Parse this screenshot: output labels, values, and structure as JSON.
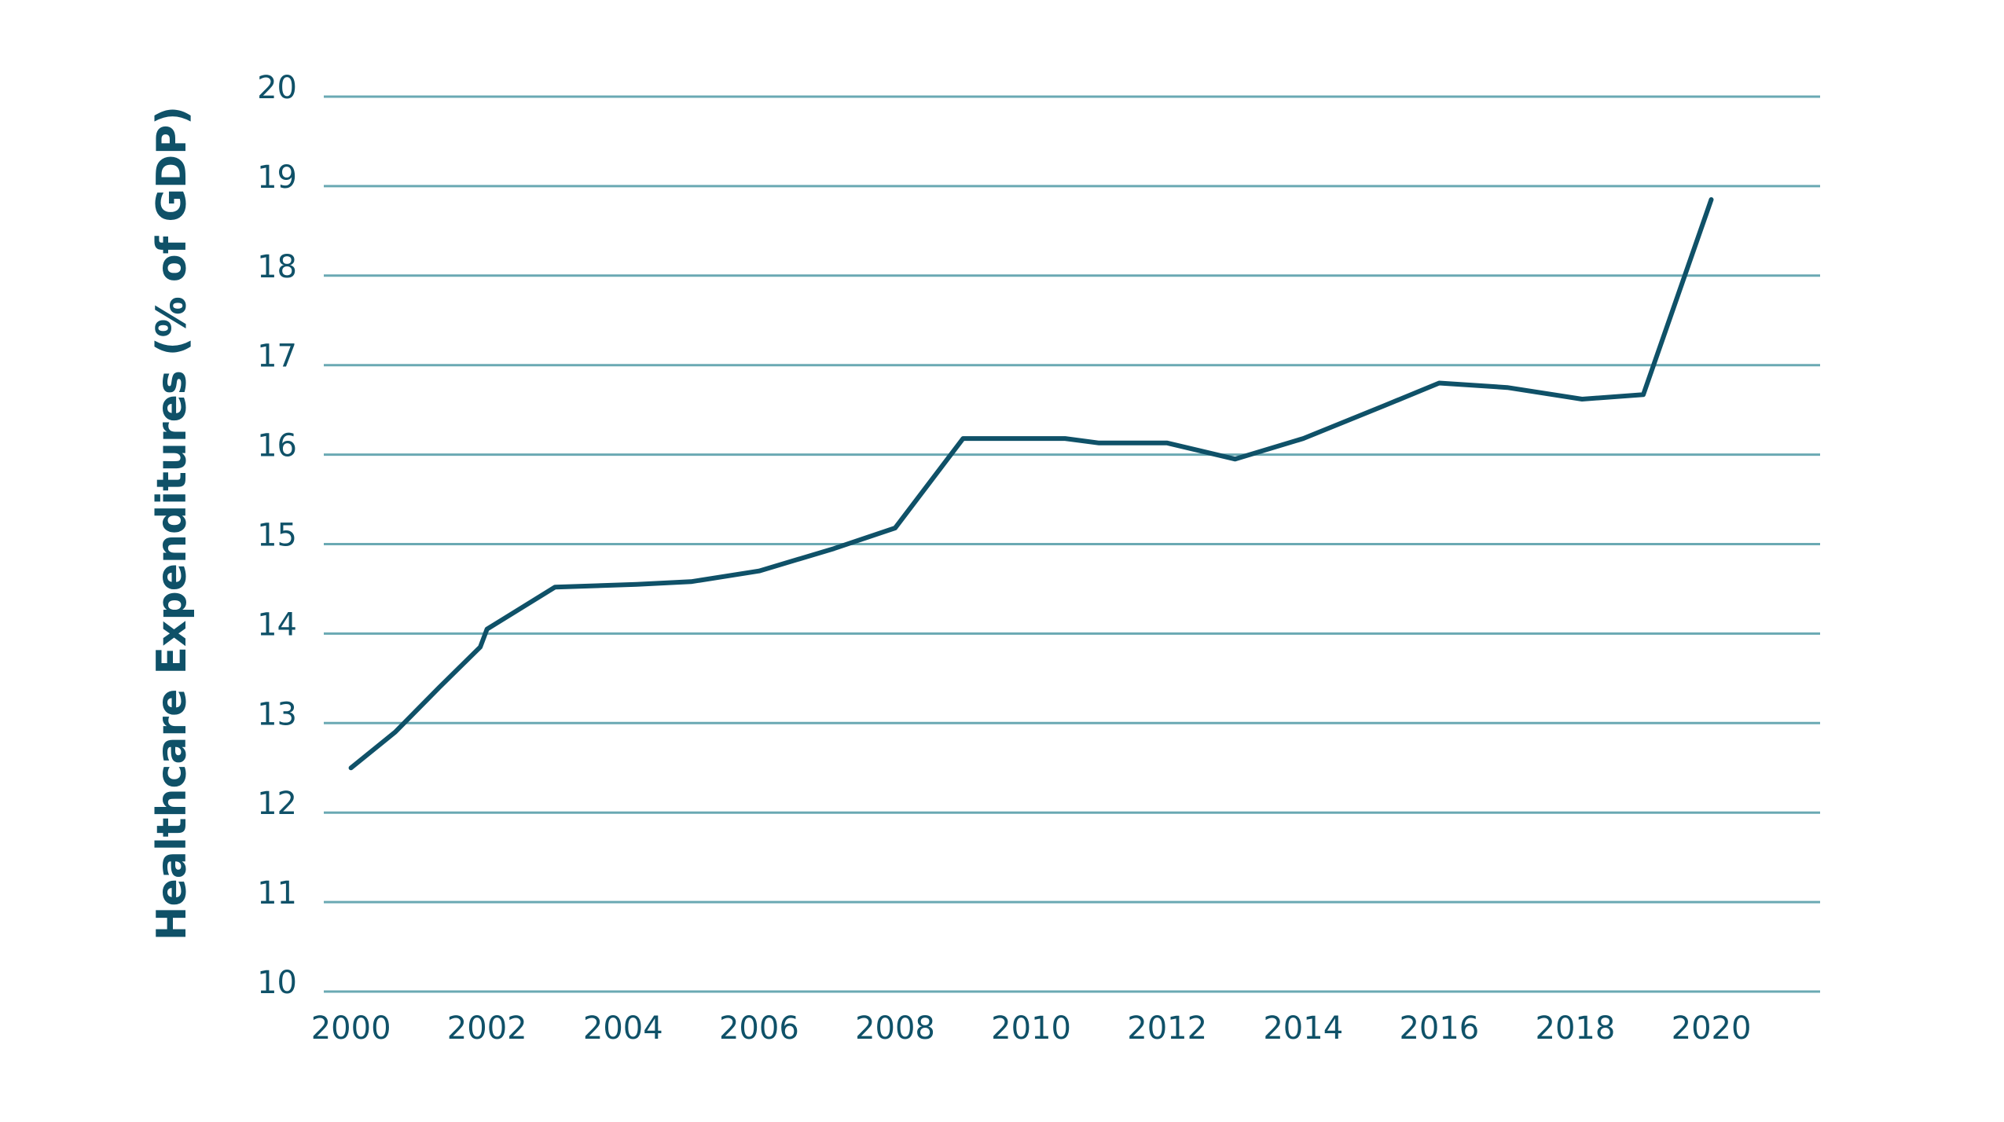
{
  "chart_data": {
    "type": "line",
    "title": "",
    "xlabel": "",
    "ylabel": "Healthcare Expenditures (% of GDP)",
    "xlim": [
      1999.6,
      2021.6
    ],
    "ylim": [
      10,
      20
    ],
    "x_ticks": [
      2000,
      2002,
      2004,
      2006,
      2008,
      2010,
      2012,
      2014,
      2016,
      2018,
      2020
    ],
    "y_ticks": [
      10,
      11,
      12,
      13,
      14,
      15,
      16,
      17,
      18,
      19,
      20
    ],
    "grid": "horizontal",
    "legend": "none",
    "series": [
      {
        "color": "#0f5168",
        "x": [
          2000,
          2000.65,
          2001.3,
          2001.9,
          2002.0,
          2003.0,
          2004.2,
          2005.0,
          2006.0,
          2007.1,
          2008.0,
          2009.0,
          2010.0,
          2010.5,
          2011.0,
          2012.0,
          2013.0,
          2014.0,
          2015.2,
          2016.0,
          2017.0,
          2018.1,
          2019.0,
          2020.0
        ],
        "y": [
          12.5,
          12.9,
          13.4,
          13.85,
          14.05,
          14.52,
          14.55,
          14.58,
          14.7,
          14.95,
          15.18,
          16.18,
          16.18,
          16.18,
          16.13,
          16.13,
          15.95,
          16.18,
          16.55,
          16.8,
          16.75,
          16.62,
          16.67,
          18.85
        ]
      }
    ]
  }
}
